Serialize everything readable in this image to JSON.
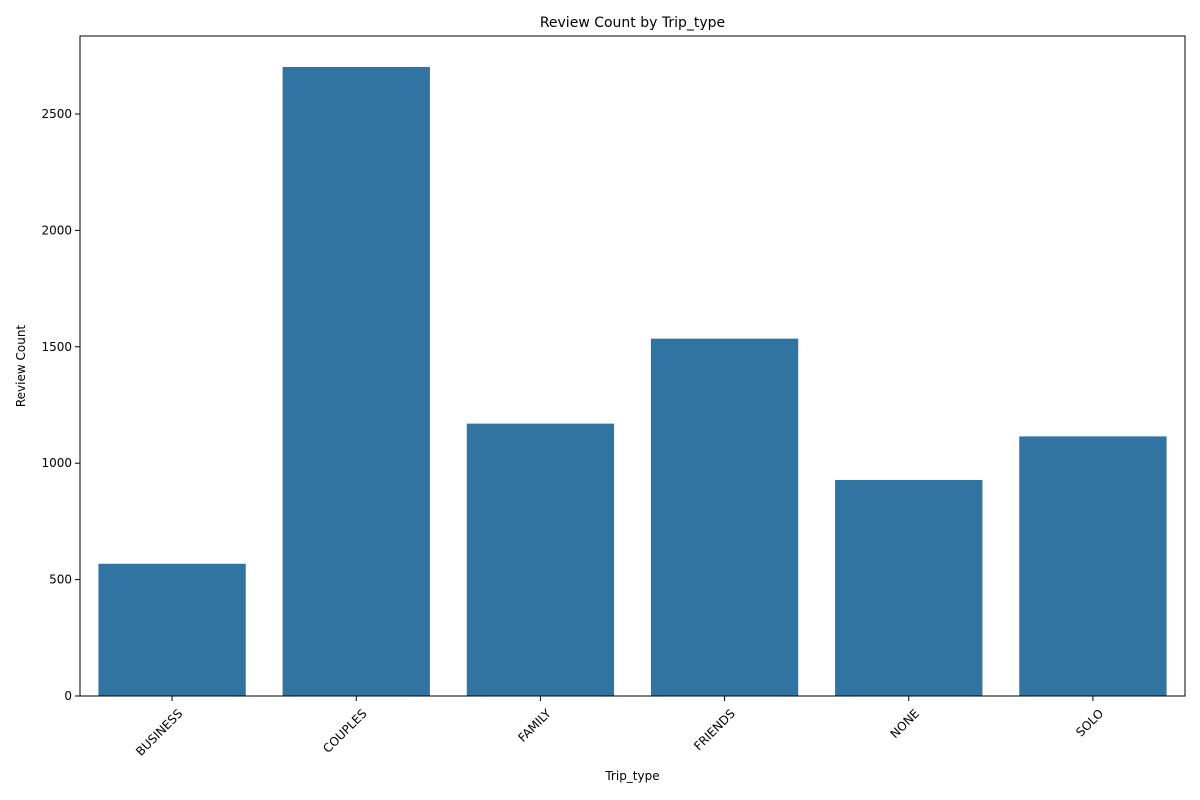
{
  "chart_data": {
    "type": "bar",
    "title": "Review Count by Trip_type",
    "xlabel": "Trip_type",
    "ylabel": "Review Count",
    "categories": [
      "BUSINESS",
      "COUPLES",
      "FAMILY",
      "FRIENDS",
      "NONE",
      "SOLO"
    ],
    "values": [
      568,
      2702,
      1170,
      1535,
      928,
      1115
    ],
    "ylim": [
      0,
      2835
    ],
    "yticks": [
      0,
      500,
      1000,
      1500,
      2000,
      2500
    ],
    "ytick_labels": [
      "0",
      "500",
      "1000",
      "1500",
      "2000",
      "2500"
    ],
    "bar_color": "#3274a1",
    "grid": false,
    "x_tick_rotation_deg": 45
  }
}
